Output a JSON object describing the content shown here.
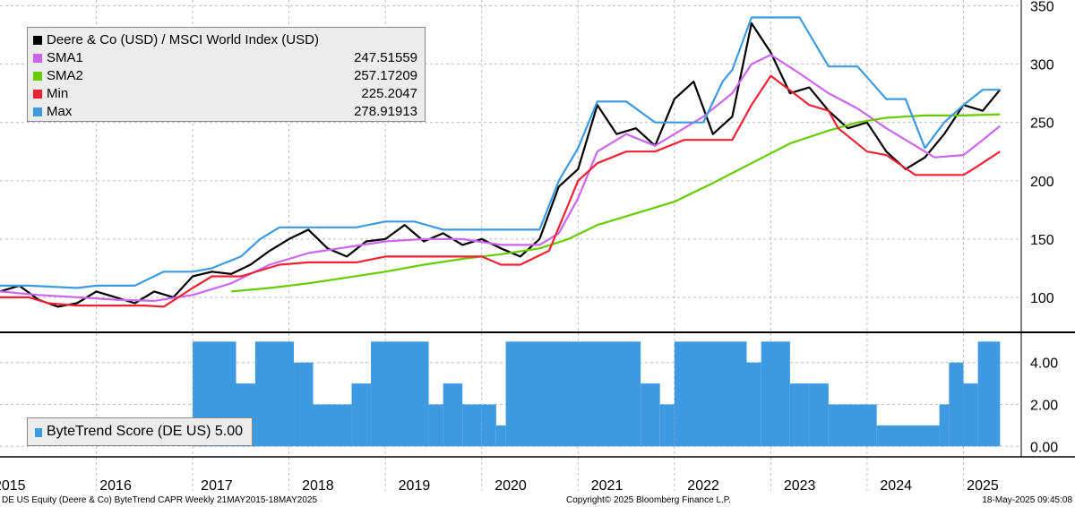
{
  "chart_data": [
    {
      "type": "line",
      "title": "",
      "ylim": [
        70,
        355
      ],
      "y_ticks": [
        100,
        150,
        200,
        250,
        300,
        350
      ],
      "x_range": [
        2015.0,
        2025.6
      ],
      "legend": {
        "placement": "top-left",
        "entries": [
          {
            "name": "Deere & Co (USD) / MSCI World Index (USD)",
            "value": "",
            "color": "#000000"
          },
          {
            "name": "SMA1",
            "value": "247.51559",
            "color": "#cc66ee"
          },
          {
            "name": "SMA2",
            "value": "257.17209",
            "color": "#66cc00"
          },
          {
            "name": "Min",
            "value": "225.2047",
            "color": "#ee2233"
          },
          {
            "name": "Max",
            "value": "278.91913",
            "color": "#3d9ae0"
          }
        ]
      },
      "series": [
        {
          "name": "Deere & Co (USD) / MSCI World Index (USD)",
          "color": "#000000",
          "x": [
            2015.0,
            2015.2,
            2015.4,
            2015.6,
            2015.8,
            2016.0,
            2016.2,
            2016.4,
            2016.6,
            2016.8,
            2017.0,
            2017.2,
            2017.4,
            2017.6,
            2017.8,
            2018.0,
            2018.2,
            2018.4,
            2018.6,
            2018.8,
            2019.0,
            2019.2,
            2019.4,
            2019.6,
            2019.8,
            2020.0,
            2020.2,
            2020.4,
            2020.6,
            2020.8,
            2021.0,
            2021.2,
            2021.4,
            2021.6,
            2021.8,
            2022.0,
            2022.2,
            2022.4,
            2022.6,
            2022.8,
            2023.0,
            2023.2,
            2023.4,
            2023.6,
            2023.8,
            2024.0,
            2024.2,
            2024.4,
            2024.6,
            2024.8,
            2025.0,
            2025.2,
            2025.38
          ],
          "values": [
            105,
            110,
            98,
            92,
            95,
            105,
            100,
            95,
            105,
            100,
            118,
            122,
            120,
            128,
            140,
            150,
            158,
            142,
            135,
            148,
            150,
            162,
            148,
            155,
            145,
            150,
            142,
            135,
            150,
            195,
            210,
            265,
            240,
            245,
            230,
            270,
            285,
            240,
            255,
            335,
            310,
            275,
            280,
            260,
            245,
            250,
            225,
            210,
            220,
            240,
            265,
            260,
            278
          ]
        },
        {
          "name": "SMA1",
          "color": "#cc66ee",
          "x": [
            2015.0,
            2015.4,
            2015.8,
            2016.2,
            2016.6,
            2017.0,
            2017.4,
            2017.8,
            2018.2,
            2018.6,
            2019.0,
            2019.4,
            2019.8,
            2020.2,
            2020.6,
            2020.8,
            2021.0,
            2021.2,
            2021.5,
            2021.8,
            2022.0,
            2022.3,
            2022.6,
            2022.8,
            2023.0,
            2023.3,
            2023.6,
            2023.9,
            2024.2,
            2024.5,
            2024.7,
            2025.0,
            2025.2,
            2025.38
          ],
          "values": [
            105,
            102,
            100,
            98,
            97,
            102,
            112,
            128,
            138,
            143,
            148,
            150,
            150,
            145,
            145,
            155,
            185,
            225,
            240,
            230,
            240,
            255,
            275,
            300,
            308,
            292,
            275,
            262,
            245,
            230,
            220,
            222,
            235,
            247
          ]
        },
        {
          "name": "SMA2",
          "color": "#66cc00",
          "x": [
            2017.4,
            2017.8,
            2018.2,
            2018.6,
            2019.0,
            2019.4,
            2019.8,
            2020.2,
            2020.6,
            2020.9,
            2021.2,
            2021.6,
            2022.0,
            2022.4,
            2022.8,
            2023.2,
            2023.6,
            2023.9,
            2024.2,
            2024.6,
            2025.0,
            2025.38
          ],
          "values": [
            105,
            108,
            112,
            117,
            122,
            128,
            133,
            137,
            142,
            150,
            162,
            172,
            182,
            198,
            215,
            232,
            243,
            250,
            254,
            256,
            256,
            257
          ]
        },
        {
          "name": "Min",
          "color": "#ee2233",
          "x": [
            2015.0,
            2015.3,
            2015.5,
            2015.8,
            2016.5,
            2016.7,
            2017.0,
            2017.2,
            2017.4,
            2017.5,
            2017.9,
            2018.2,
            2018.4,
            2018.7,
            2019.0,
            2019.3,
            2019.6,
            2020.0,
            2020.2,
            2020.4,
            2020.7,
            2020.8,
            2021.0,
            2021.2,
            2021.5,
            2021.7,
            2021.8,
            2022.1,
            2022.4,
            2022.6,
            2022.8,
            2023.0,
            2023.4,
            2023.6,
            2023.7,
            2024.0,
            2024.2,
            2024.5,
            2024.6,
            2025.0,
            2025.1,
            2025.38
          ],
          "values": [
            100,
            100,
            95,
            93,
            93,
            92,
            108,
            118,
            118,
            118,
            128,
            130,
            130,
            130,
            135,
            135,
            135,
            135,
            128,
            128,
            140,
            160,
            200,
            215,
            225,
            225,
            225,
            235,
            235,
            235,
            265,
            290,
            265,
            260,
            245,
            225,
            222,
            205,
            205,
            205,
            210,
            225
          ]
        },
        {
          "name": "Max",
          "color": "#3d9ae0",
          "x": [
            2015.0,
            2015.3,
            2015.8,
            2016.0,
            2016.4,
            2016.7,
            2017.0,
            2017.2,
            2017.5,
            2017.7,
            2017.9,
            2018.1,
            2018.4,
            2018.7,
            2019.0,
            2019.3,
            2019.6,
            2020.0,
            2020.2,
            2020.4,
            2020.6,
            2020.8,
            2021.0,
            2021.2,
            2021.5,
            2021.8,
            2022.0,
            2022.3,
            2022.5,
            2022.6,
            2022.8,
            2023.0,
            2023.3,
            2023.6,
            2023.9,
            2024.2,
            2024.4,
            2024.6,
            2024.8,
            2025.0,
            2025.2,
            2025.38
          ],
          "values": [
            110,
            110,
            108,
            110,
            110,
            122,
            122,
            125,
            135,
            150,
            160,
            160,
            160,
            160,
            165,
            165,
            158,
            158,
            158,
            158,
            158,
            200,
            228,
            268,
            268,
            250,
            250,
            250,
            285,
            295,
            340,
            340,
            340,
            298,
            298,
            270,
            270,
            228,
            250,
            265,
            278,
            278
          ]
        }
      ]
    },
    {
      "type": "bar",
      "title": "",
      "legend": {
        "placement": "bottom-left",
        "entries": [
          {
            "name": "ByteTrend Score (DE US) 5.00",
            "color": "#3d9ae0"
          }
        ]
      },
      "ylim": [
        -0.5,
        5.4
      ],
      "y_ticks": [
        0,
        2,
        4
      ],
      "y_tick_labels": [
        "0.00",
        "2.00",
        "4.00"
      ],
      "segments": [
        {
          "from": 2017.0,
          "to": 2017.45,
          "value": 5
        },
        {
          "from": 2017.45,
          "to": 2017.65,
          "value": 3
        },
        {
          "from": 2017.65,
          "to": 2018.05,
          "value": 5
        },
        {
          "from": 2018.05,
          "to": 2018.25,
          "value": 4
        },
        {
          "from": 2018.25,
          "to": 2018.65,
          "value": 2
        },
        {
          "from": 2018.65,
          "to": 2018.85,
          "value": 3
        },
        {
          "from": 2018.85,
          "to": 2019.45,
          "value": 5
        },
        {
          "from": 2019.45,
          "to": 2019.6,
          "value": 2
        },
        {
          "from": 2019.6,
          "to": 2019.8,
          "value": 3
        },
        {
          "from": 2019.8,
          "to": 2020.0,
          "value": 2
        },
        {
          "from": 2020.0,
          "to": 2020.15,
          "value": 2
        },
        {
          "from": 2020.15,
          "to": 2020.25,
          "value": 1
        },
        {
          "from": 2020.25,
          "to": 2021.65,
          "value": 5
        },
        {
          "from": 2021.65,
          "to": 2021.85,
          "value": 3
        },
        {
          "from": 2021.85,
          "to": 2022.0,
          "value": 2
        },
        {
          "from": 2022.0,
          "to": 2022.75,
          "value": 5
        },
        {
          "from": 2022.75,
          "to": 2022.9,
          "value": 4
        },
        {
          "from": 2022.9,
          "to": 2023.2,
          "value": 5
        },
        {
          "from": 2023.2,
          "to": 2023.4,
          "value": 3
        },
        {
          "from": 2023.4,
          "to": 2023.6,
          "value": 3
        },
        {
          "from": 2023.6,
          "to": 2024.1,
          "value": 2
        },
        {
          "from": 2024.1,
          "to": 2024.75,
          "value": 1
        },
        {
          "from": 2024.75,
          "to": 2024.85,
          "value": 2
        },
        {
          "from": 2024.85,
          "to": 2025.0,
          "value": 4
        },
        {
          "from": 2025.0,
          "to": 2025.15,
          "value": 3
        },
        {
          "from": 2025.15,
          "to": 2025.38,
          "value": 5
        }
      ]
    }
  ],
  "x_axis": {
    "labels": [
      "2015",
      "2016",
      "2017",
      "2018",
      "2019",
      "2020",
      "2021",
      "2022",
      "2023",
      "2024",
      "2025"
    ],
    "label_positions": [
      2015.1,
      2016.2,
      2017.25,
      2018.3,
      2019.3,
      2020.3,
      2021.3,
      2022.3,
      2023.3,
      2024.3,
      2025.2
    ]
  },
  "footer": {
    "left": "DE US Equity (Deere & Co) ByteTrend CAPR  Weekly 21MAY2015-18MAY2025",
    "center": "Copyright© 2025 Bloomberg Finance L.P.",
    "right": "18-May-2025 09:45:08"
  }
}
